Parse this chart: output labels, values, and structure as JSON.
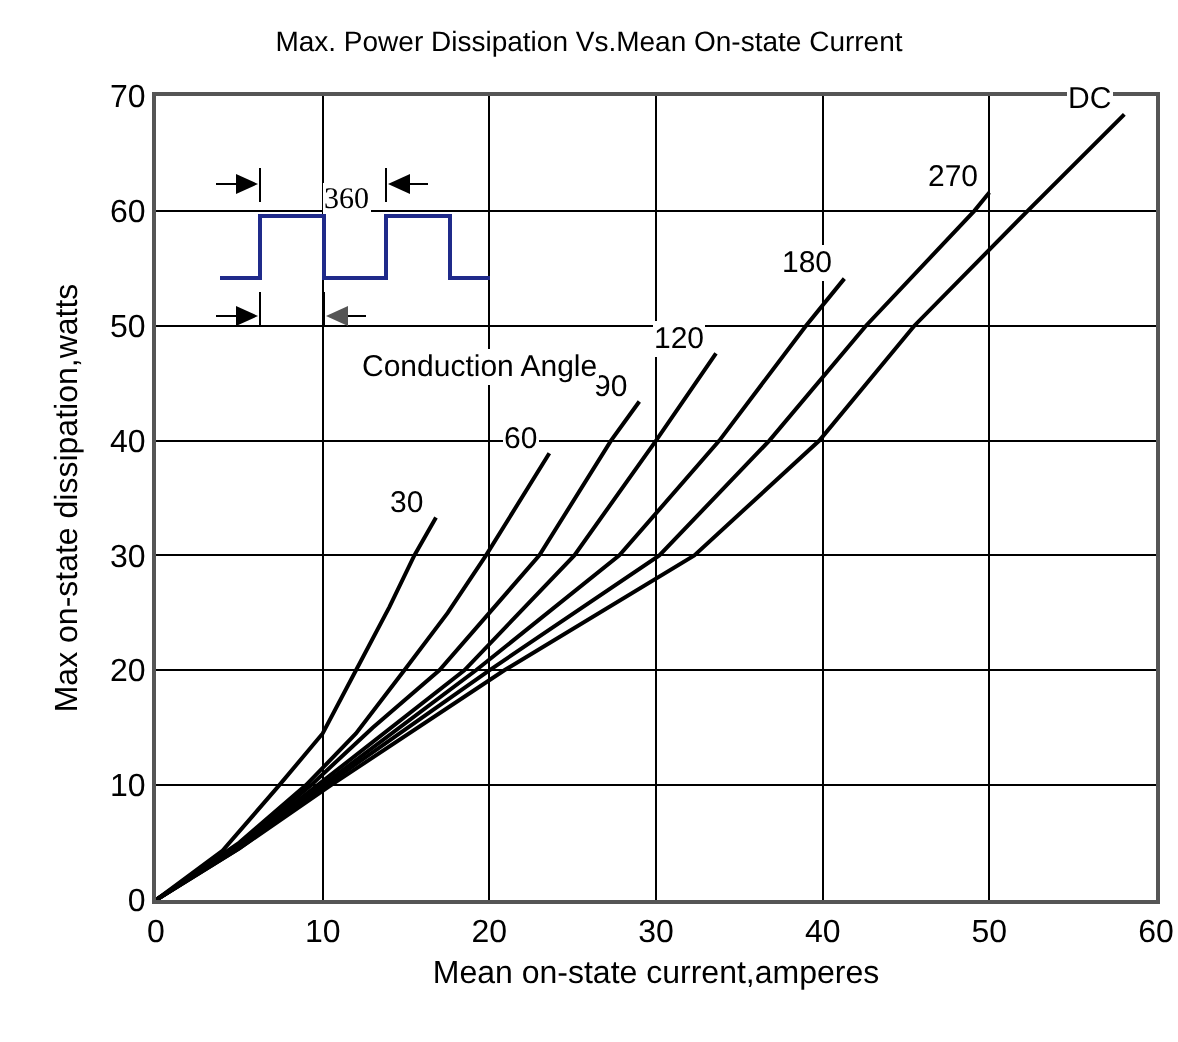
{
  "chart_data": {
    "type": "line",
    "title": "Max. Power Dissipation Vs.Mean On-state Current",
    "xlabel": "Mean on-state current,amperes",
    "ylabel": "Max on-state dissipation,watts",
    "xlim": [
      0,
      60
    ],
    "xticks": [
      0,
      10,
      20,
      30,
      40,
      50,
      60
    ],
    "ylim": [
      0,
      70
    ],
    "yticks": [
      0,
      10,
      20,
      30,
      40,
      50,
      60,
      70
    ],
    "grid": true,
    "legend": false,
    "marker": "none",
    "line_style": "solid",
    "annotations": [
      "360",
      "Conduction Angle"
    ],
    "series": [
      {
        "name": "30",
        "color": "#000000",
        "x": [
          0,
          4,
          7.4,
          10,
          12,
          14,
          15.5,
          16.8
        ],
        "values": [
          0,
          4.3,
          10,
          14.5,
          20,
          25.5,
          30,
          33.3
        ]
      },
      {
        "name": "60",
        "color": "#000000",
        "x": [
          0,
          5,
          9,
          12,
          14.9,
          17.5,
          19.8,
          23.6
        ],
        "values": [
          0,
          5,
          10,
          14.5,
          20,
          25,
          30,
          38.9
        ]
      },
      {
        "name": "90",
        "color": "#000000",
        "x": [
          0,
          5,
          9.3,
          13,
          17,
          23,
          27.3,
          29
        ],
        "values": [
          0,
          4.8,
          10,
          15,
          20,
          30,
          40,
          43.4
        ]
      },
      {
        "name": "120",
        "color": "#000000",
        "x": [
          0,
          5,
          9.7,
          18.5,
          25.1,
          30,
          33.6
        ],
        "values": [
          0,
          4.7,
          10,
          20,
          30,
          40,
          47.6
        ]
      },
      {
        "name": "180",
        "color": "#000000",
        "x": [
          0,
          5,
          10,
          19.2,
          27.8,
          33.8,
          39,
          41.3
        ],
        "values": [
          0,
          4.6,
          10,
          20,
          30,
          40,
          50,
          54.1
        ]
      },
      {
        "name": "270",
        "color": "#000000",
        "x": [
          0,
          5,
          10.2,
          20,
          30.2,
          36.8,
          42.6,
          49.1,
          50
        ],
        "values": [
          0,
          4.5,
          10,
          20,
          30,
          40,
          50,
          60,
          61.6
        ]
      },
      {
        "name": "DC",
        "color": "#000000",
        "x": [
          0,
          5,
          10.5,
          20.9,
          32.3,
          39.8,
          45.5,
          52.3,
          58.1
        ],
        "values": [
          0,
          4.5,
          10,
          20,
          30,
          40,
          50,
          60,
          68.4
        ]
      }
    ]
  }
}
